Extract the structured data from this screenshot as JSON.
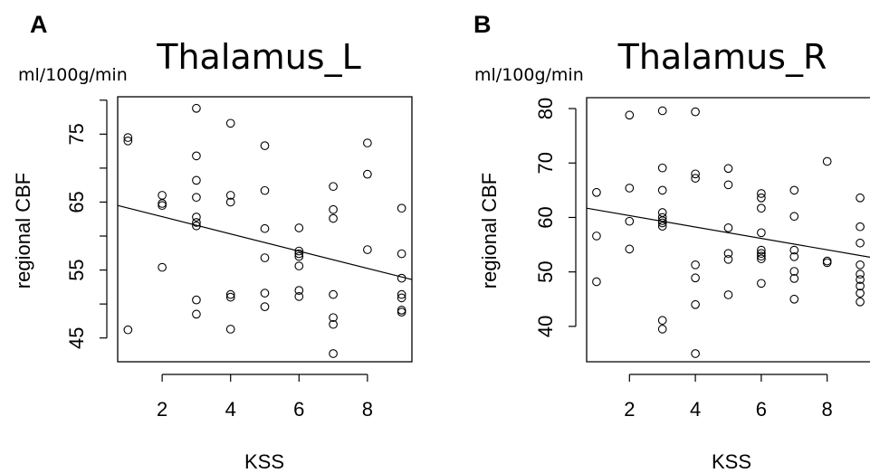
{
  "chart_data": [
    {
      "type": "scatter",
      "panel": "A",
      "title": "Thalamus_L",
      "unit": "ml/100g/min",
      "xlabel": "KSS",
      "ylabel": "regional CBF",
      "xlim": [
        0.7,
        9.3
      ],
      "ylim": [
        41.5,
        80.5
      ],
      "xticks": [
        2,
        4,
        6,
        8
      ],
      "yticks": [
        45,
        55,
        65,
        75
      ],
      "yticks_minor": [
        50,
        60,
        70,
        80
      ],
      "grid": false,
      "points": [
        [
          1,
          74.5
        ],
        [
          1,
          74
        ],
        [
          1,
          46.2
        ],
        [
          2,
          66
        ],
        [
          2,
          64.8
        ],
        [
          2,
          64.5
        ],
        [
          2,
          55.4
        ],
        [
          3,
          78.8
        ],
        [
          3,
          71.8
        ],
        [
          3,
          68.2
        ],
        [
          3,
          65.7
        ],
        [
          3,
          62.8
        ],
        [
          3,
          62
        ],
        [
          3,
          61.5
        ],
        [
          3,
          50.6
        ],
        [
          3,
          48.5
        ],
        [
          4,
          76.6
        ],
        [
          4,
          66
        ],
        [
          4,
          65
        ],
        [
          4,
          51.4
        ],
        [
          4,
          51
        ],
        [
          4,
          46.3
        ],
        [
          5,
          73.3
        ],
        [
          5,
          66.7
        ],
        [
          5,
          61.1
        ],
        [
          5,
          56.8
        ],
        [
          5,
          51.6
        ],
        [
          5,
          49.6
        ],
        [
          6,
          61.2
        ],
        [
          6,
          57.8
        ],
        [
          6,
          57.4
        ],
        [
          6,
          57
        ],
        [
          6,
          55.6
        ],
        [
          6,
          52
        ],
        [
          6,
          51.1
        ],
        [
          7,
          67.3
        ],
        [
          7,
          63.9
        ],
        [
          7,
          62.6
        ],
        [
          7,
          51.4
        ],
        [
          7,
          48
        ],
        [
          7,
          47
        ],
        [
          7,
          42.7
        ],
        [
          8,
          73.7
        ],
        [
          8,
          69.1
        ],
        [
          8,
          58
        ],
        [
          9,
          64.1
        ],
        [
          9,
          57.4
        ],
        [
          9,
          53.8
        ],
        [
          9,
          51.4
        ],
        [
          9,
          50.9
        ],
        [
          9,
          49.1
        ],
        [
          9,
          48.8
        ]
      ],
      "regression": {
        "x": [
          0.7,
          9.3
        ],
        "y": [
          64.5,
          53.6
        ]
      }
    },
    {
      "type": "scatter",
      "panel": "B",
      "title": "Thalamus_R",
      "unit": "ml/100g/min",
      "xlabel": "KSS",
      "ylabel": "regional CBF",
      "xlim": [
        0.7,
        9.3
      ],
      "ylim": [
        33.5,
        82
      ],
      "xticks": [
        2,
        4,
        6,
        8
      ],
      "yticks": [
        40,
        50,
        60,
        70,
        80
      ],
      "grid": false,
      "points": [
        [
          1,
          64.6
        ],
        [
          1,
          56.6
        ],
        [
          1,
          48.2
        ],
        [
          2,
          78.8
        ],
        [
          2,
          65.4
        ],
        [
          2,
          59.3
        ],
        [
          2,
          54.2
        ],
        [
          3,
          79.6
        ],
        [
          3,
          69.1
        ],
        [
          3,
          65
        ],
        [
          3,
          60.9
        ],
        [
          3,
          60
        ],
        [
          3,
          59.4
        ],
        [
          3,
          59
        ],
        [
          3,
          58.4
        ],
        [
          3,
          41.1
        ],
        [
          3,
          39.5
        ],
        [
          4,
          79.4
        ],
        [
          4,
          68
        ],
        [
          4,
          67.2
        ],
        [
          4,
          51.3
        ],
        [
          4,
          48.9
        ],
        [
          4,
          44
        ],
        [
          4,
          35
        ],
        [
          5,
          69
        ],
        [
          5,
          66
        ],
        [
          5,
          58.1
        ],
        [
          5,
          53.4
        ],
        [
          5,
          52.3
        ],
        [
          5,
          45.8
        ],
        [
          6,
          64.4
        ],
        [
          6,
          63.6
        ],
        [
          6,
          61.7
        ],
        [
          6,
          57.2
        ],
        [
          6,
          54
        ],
        [
          6,
          53.4
        ],
        [
          6,
          52.9
        ],
        [
          6,
          52.4
        ],
        [
          6,
          47.9
        ],
        [
          7,
          65
        ],
        [
          7,
          60.2
        ],
        [
          7,
          54
        ],
        [
          7,
          52.8
        ],
        [
          7,
          50.1
        ],
        [
          7,
          48.8
        ],
        [
          7,
          45
        ],
        [
          8,
          70.3
        ],
        [
          8,
          52
        ],
        [
          8,
          51.7
        ],
        [
          9,
          63.6
        ],
        [
          9,
          58.3
        ],
        [
          9,
          55.3
        ],
        [
          9,
          51.3
        ],
        [
          9,
          49.6
        ],
        [
          9,
          48.6
        ],
        [
          9,
          47.4
        ],
        [
          9,
          46.1
        ],
        [
          9,
          44.5
        ]
      ],
      "regression": {
        "x": [
          0.7,
          9.3
        ],
        "y": [
          61.7,
          52.7
        ]
      }
    }
  ]
}
